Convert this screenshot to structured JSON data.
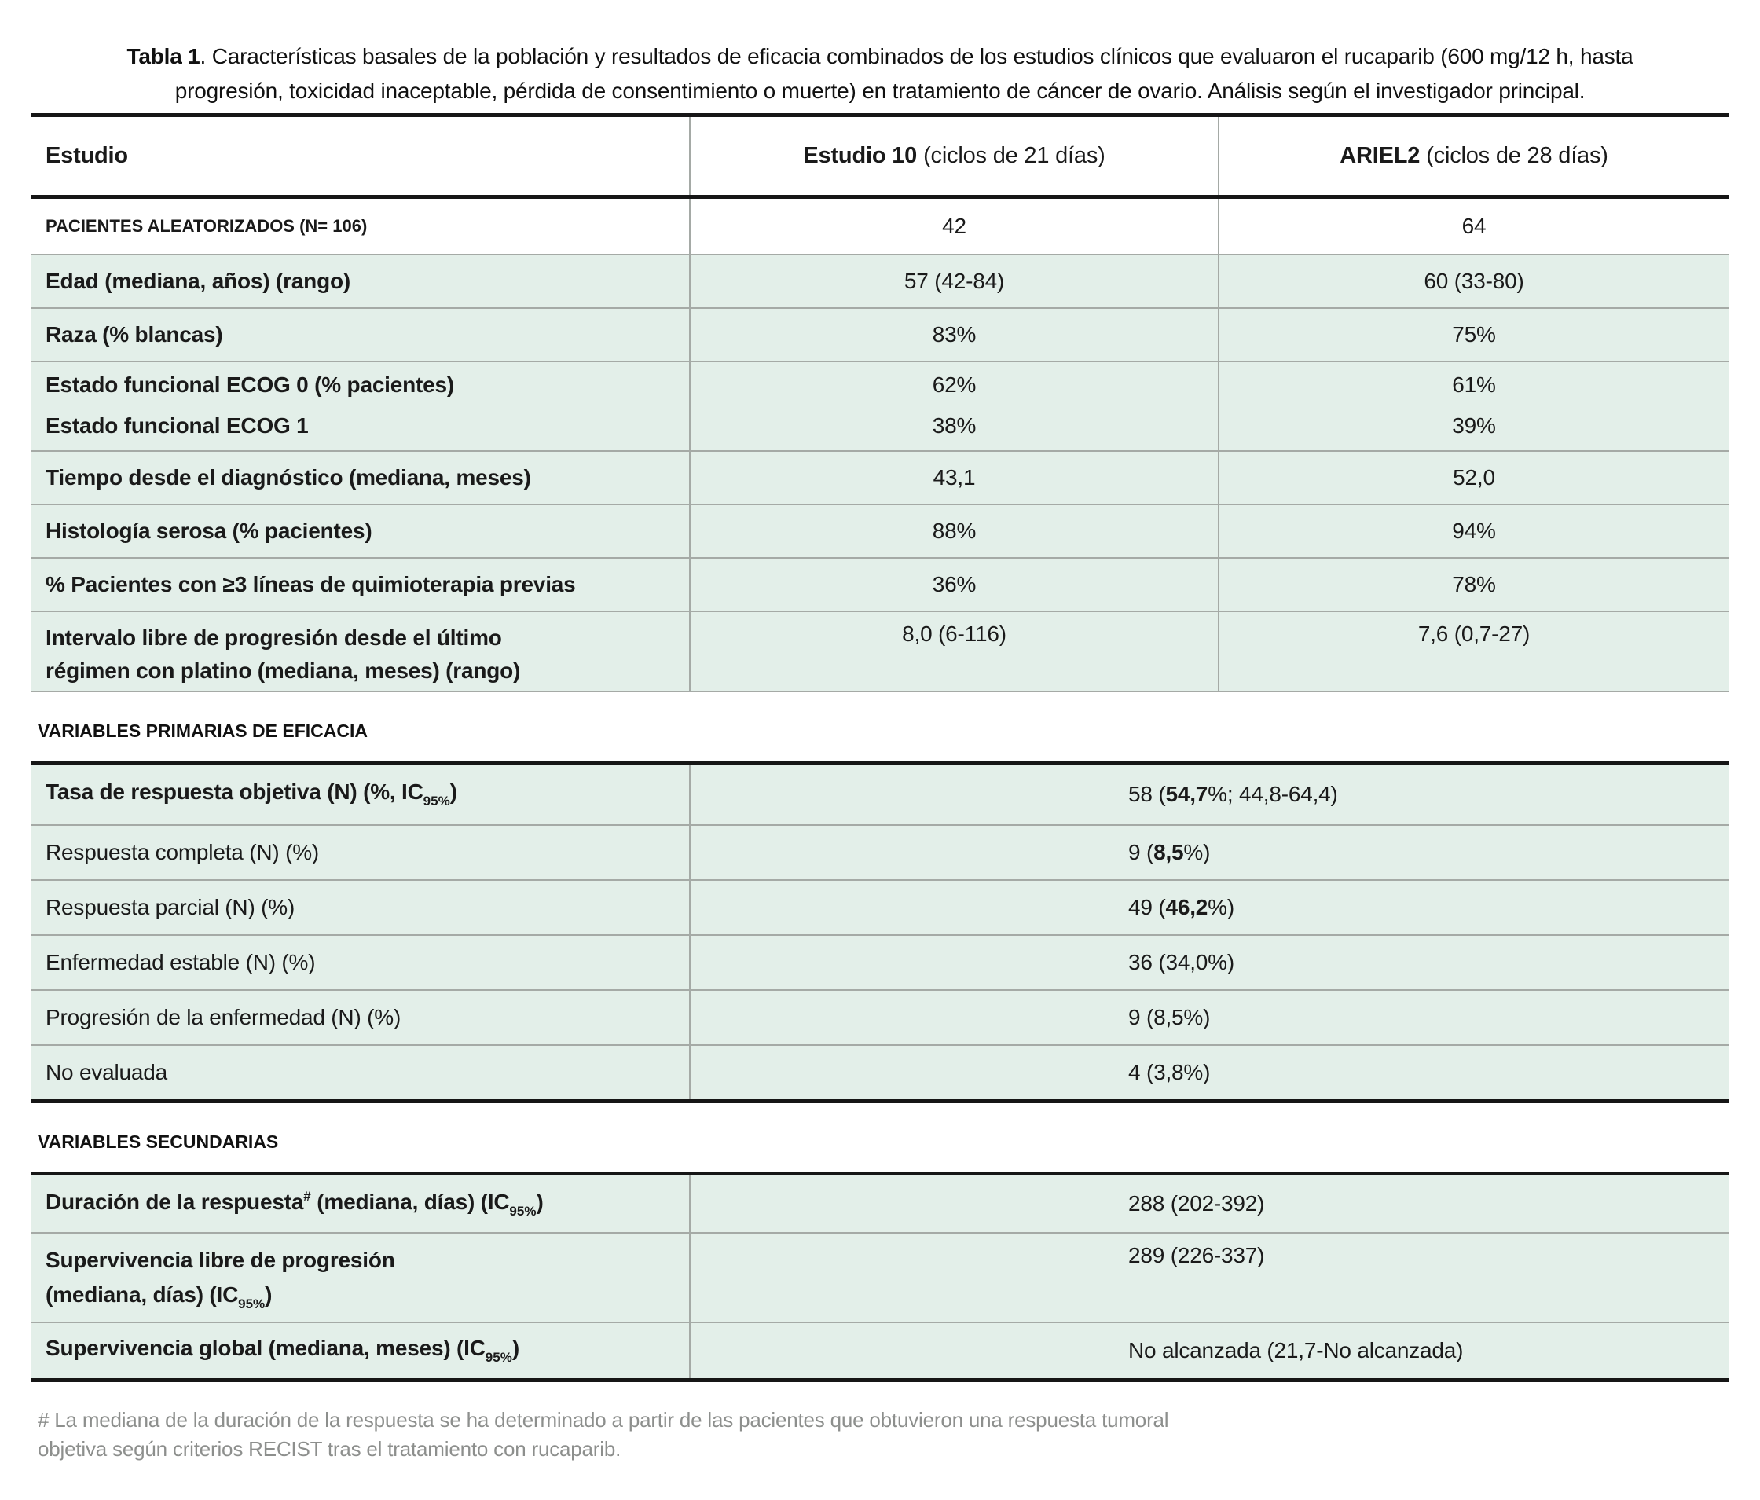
{
  "title": {
    "bold": "Tabla 1",
    "rest": ". Características basales de la población y resultados de eficacia combinados de los estudios clínicos que evaluaron el rucaparib (600 mg/12 h, hasta progresión, toxicidad inaceptable, pérdida de consentimiento o muerte) en tratamiento de cáncer de ovario. Análisis según el investigador principal."
  },
  "colors": {
    "row_green": "#e3efe9",
    "grid_line": "#a5aaa6",
    "heavy_line": "#161616",
    "footnote_gray": "#8d8f8d"
  },
  "baseline": {
    "header": {
      "col1": "Estudio",
      "col2_bold": "Estudio 10",
      "col2_rest": "(ciclos de 21 días)",
      "col3_bold": "ARIEL2",
      "col3_rest": "(ciclos de 28 días)"
    },
    "rows": [
      {
        "label": "PACIENTES ALEATORIZADOS (N= 106)",
        "v1": "42",
        "v2": "64"
      },
      {
        "label": "Edad (mediana, años) (rango)",
        "v1": "57 (42-84)",
        "v2": "60 (33-80)"
      },
      {
        "label": "Raza (% blancas)",
        "v1": "83%",
        "v2": "75%"
      },
      {
        "label": "Estado funcional ECOG 0 (% pacientes)",
        "label2": "Estado funcional ECOG 1",
        "v1": "62%",
        "v1b": "38%",
        "v2": "61%",
        "v2b": "39%"
      },
      {
        "label": "Tiempo desde el diagnóstico (mediana, meses)",
        "v1": "43,1",
        "v2": "52,0"
      },
      {
        "label": "Histología serosa (% pacientes)",
        "v1": "88%",
        "v2": "94%"
      },
      {
        "label": "% Pacientes con ≥3 líneas de quimioterapia previas",
        "v1": "36%",
        "v2": "78%"
      },
      {
        "label": "Intervalo libre de progresión desde el último",
        "label2": "régimen con platino (mediana, meses) (rango)",
        "v1": "8,0 (6-116)",
        "v2": "7,6 (0,7-27)"
      }
    ]
  },
  "primary": {
    "section_label": "VARIABLES PRIMARIAS DE EFICACIA",
    "rows": [
      {
        "label_pre": "Tasa de respuesta objetiva (N) (%, IC",
        "label_sub": "95%",
        "label_close": ")",
        "v_pre": "58 (",
        "v_bold": "54,7",
        "v_post": "%; 44,8-64,4)"
      },
      {
        "label_pre": "Respuesta completa (N) (%)",
        "v_pre": "9 (",
        "v_bold": "8,5",
        "v_post": "%)"
      },
      {
        "label_pre": "Respuesta parcial (N) (%)",
        "v_pre": "49 (",
        "v_bold": "46,2",
        "v_post": "%)"
      },
      {
        "label_pre": "Enfermedad estable (N) (%)",
        "v_pre": "36 (34,0%)"
      },
      {
        "label_pre": "Progresión de la enfermedad (N) (%)",
        "v_pre": "9 (8,5%)"
      },
      {
        "label_pre": "No evaluada",
        "v_pre": "4 (3,8%)"
      }
    ]
  },
  "secondary": {
    "section_label": "VARIABLES SECUNDARIAS",
    "rows": [
      {
        "label_pre": "Duración de la respuesta",
        "label_sup": "#",
        "label_mid": " (mediana, días) (IC",
        "label_sub": "95%",
        "label_close": ")",
        "value": "288 (202-392)"
      },
      {
        "label_line1": "Supervivencia libre de progresión",
        "label_line2": "(mediana, días) (IC",
        "label_sub": "95%",
        "label_close": ")",
        "value": "289 (226-337)"
      },
      {
        "label_pre": "Supervivencia global (mediana, meses) (IC",
        "label_sub": "95%",
        "label_close": ")",
        "value": "No alcanzada (21,7-No alcanzada)"
      }
    ]
  },
  "footnote": "# La mediana de la duración de la respuesta se ha determinado a partir de las pacientes que obtuvieron una respuesta tumoral objetiva según criterios RECIST tras el tratamiento con rucaparib."
}
